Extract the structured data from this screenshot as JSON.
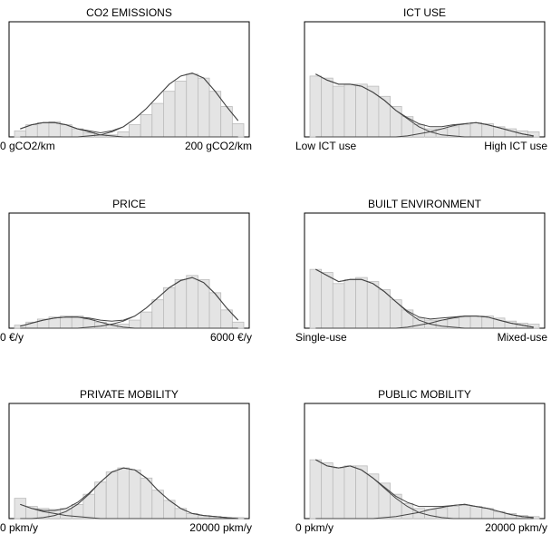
{
  "chart_data": [
    {
      "type": "histogram",
      "title": "CO2 EMISSIONS",
      "x_start_label": "0 gCO2/km",
      "x_end_label": "200 gCO2/km",
      "xlim": [
        0,
        200
      ],
      "bins": [
        0,
        10,
        20,
        30,
        40,
        50,
        60,
        70,
        80,
        90,
        100,
        110,
        120,
        130,
        140,
        150,
        160,
        170,
        180,
        190,
        200
      ],
      "ylim": [
        0,
        110
      ],
      "values": [
        6,
        12,
        14,
        15,
        12,
        8,
        4,
        2,
        2,
        5,
        12,
        22,
        33,
        45,
        55,
        62,
        58,
        45,
        30,
        13
      ],
      "density": [
        [
          8,
          12,
          14,
          14,
          12,
          8,
          5,
          2,
          1,
          0,
          0,
          0,
          0,
          0,
          0,
          0,
          0,
          0,
          0,
          0
        ],
        [
          0,
          0,
          0,
          0,
          0,
          0,
          1,
          2,
          5,
          10,
          18,
          28,
          40,
          52,
          60,
          63,
          58,
          45,
          30,
          16
        ],
        [
          8,
          12,
          14,
          14,
          12,
          8,
          6,
          4,
          6,
          10,
          18,
          28,
          40,
          52,
          60,
          63,
          58,
          45,
          30,
          16
        ]
      ]
    },
    {
      "type": "histogram",
      "title": "ICT USE",
      "x_start_label": "Low ICT use",
      "x_end_label": "High ICT use",
      "xlim": [
        0,
        20
      ],
      "bins": [
        0,
        1,
        2,
        3,
        4,
        5,
        6,
        7,
        8,
        9,
        10,
        11,
        12,
        13,
        14,
        15,
        16,
        17,
        18,
        19,
        20
      ],
      "ylim": [
        0,
        110
      ],
      "values": [
        60,
        58,
        50,
        52,
        52,
        50,
        40,
        30,
        20,
        12,
        8,
        8,
        10,
        12,
        14,
        13,
        10,
        8,
        6,
        5
      ],
      "density": [
        [
          62,
          56,
          52,
          52,
          50,
          44,
          36,
          26,
          18,
          10,
          5,
          2,
          1,
          0,
          0,
          0,
          0,
          0,
          0,
          0
        ],
        [
          0,
          0,
          0,
          0,
          0,
          0,
          0,
          0,
          1,
          3,
          5,
          8,
          11,
          13,
          14,
          12,
          9,
          6,
          3,
          1
        ],
        [
          62,
          56,
          52,
          52,
          50,
          44,
          36,
          26,
          19,
          13,
          10,
          10,
          12,
          13,
          14,
          12,
          9,
          6,
          3,
          1
        ]
      ]
    },
    {
      "type": "histogram",
      "title": "PRICE",
      "x_start_label": "0 €/y",
      "x_end_label": "6000 €/y",
      "xlim": [
        0,
        6000
      ],
      "bins": [
        0,
        300,
        600,
        900,
        1200,
        1500,
        1800,
        2100,
        2400,
        2700,
        3000,
        3300,
        3600,
        3900,
        4200,
        4500,
        4800,
        5100,
        5400,
        5700,
        6000
      ],
      "ylim": [
        0,
        110
      ],
      "values": [
        3,
        6,
        9,
        11,
        12,
        12,
        9,
        6,
        4,
        4,
        8,
        16,
        28,
        40,
        48,
        52,
        48,
        35,
        18,
        6
      ],
      "density": [
        [
          2,
          5,
          8,
          10,
          11,
          11,
          9,
          6,
          3,
          1,
          0,
          0,
          0,
          0,
          0,
          0,
          0,
          0,
          0,
          0
        ],
        [
          0,
          0,
          0,
          0,
          0,
          0,
          1,
          2,
          4,
          7,
          12,
          20,
          30,
          40,
          47,
          50,
          45,
          34,
          20,
          8
        ],
        [
          2,
          5,
          8,
          10,
          11,
          11,
          10,
          8,
          7,
          8,
          12,
          20,
          30,
          40,
          47,
          50,
          45,
          34,
          20,
          8
        ]
      ]
    },
    {
      "type": "histogram",
      "title": "BUILT ENVIRONMENT",
      "x_start_label": "Single-use",
      "x_end_label": "Mixed-use",
      "xlim": [
        0,
        20
      ],
      "bins": [
        0,
        1,
        2,
        3,
        4,
        5,
        6,
        7,
        8,
        9,
        10,
        11,
        12,
        13,
        14,
        15,
        16,
        17,
        18,
        19,
        20
      ],
      "ylim": [
        0,
        110
      ],
      "values": [
        58,
        55,
        44,
        48,
        50,
        46,
        38,
        28,
        18,
        10,
        8,
        8,
        10,
        11,
        12,
        12,
        10,
        7,
        5,
        4
      ],
      "density": [
        [
          58,
          52,
          46,
          48,
          48,
          44,
          36,
          26,
          16,
          8,
          4,
          2,
          1,
          0,
          0,
          0,
          0,
          0,
          0,
          0
        ],
        [
          0,
          0,
          0,
          0,
          0,
          0,
          0,
          0,
          1,
          3,
          5,
          8,
          10,
          12,
          12,
          11,
          8,
          5,
          3,
          1
        ],
        [
          58,
          52,
          46,
          48,
          48,
          44,
          36,
          26,
          17,
          11,
          9,
          10,
          11,
          12,
          12,
          11,
          8,
          5,
          3,
          1
        ]
      ]
    },
    {
      "type": "histogram",
      "title": "PRIVATE MOBILITY",
      "x_start_label": "0 pkm/y",
      "x_end_label": "20000 pkm/y",
      "xlim": [
        0,
        20000
      ],
      "bins": [
        0,
        1000,
        2000,
        3000,
        4000,
        5000,
        6000,
        7000,
        8000,
        9000,
        10000,
        11000,
        12000,
        13000,
        14000,
        15000,
        16000,
        17000,
        18000,
        19000,
        20000
      ],
      "ylim": [
        0,
        110
      ],
      "values": [
        20,
        12,
        10,
        9,
        10,
        14,
        24,
        36,
        46,
        50,
        48,
        40,
        28,
        18,
        10,
        5,
        3,
        2,
        1,
        1
      ],
      "density": [
        [
          14,
          10,
          7,
          5,
          3,
          2,
          1,
          0,
          0,
          0,
          0,
          0,
          0,
          0,
          0,
          0,
          0,
          0,
          0,
          0
        ],
        [
          0,
          0,
          1,
          3,
          7,
          14,
          24,
          36,
          46,
          50,
          48,
          40,
          28,
          18,
          10,
          5,
          3,
          2,
          1,
          0
        ],
        [
          14,
          10,
          8,
          8,
          10,
          16,
          25,
          36,
          46,
          50,
          48,
          40,
          28,
          18,
          10,
          5,
          3,
          2,
          1,
          0
        ]
      ]
    },
    {
      "type": "histogram",
      "title": "PUBLIC MOBILITY",
      "x_start_label": "0 pkm/y",
      "x_end_label": "20000 pkm/y",
      "xlim": [
        0,
        20000
      ],
      "bins": [
        0,
        1000,
        2000,
        3000,
        4000,
        5000,
        6000,
        7000,
        8000,
        9000,
        10000,
        11000,
        12000,
        13000,
        14000,
        15000,
        16000,
        17000,
        18000,
        19000,
        20000
      ],
      "ylim": [
        0,
        110
      ],
      "values": [
        58,
        55,
        50,
        52,
        52,
        44,
        35,
        24,
        15,
        10,
        9,
        10,
        12,
        13,
        12,
        10,
        7,
        5,
        3,
        2
      ],
      "density": [
        [
          58,
          52,
          50,
          52,
          48,
          40,
          30,
          20,
          12,
          6,
          3,
          1,
          0,
          0,
          0,
          0,
          0,
          0,
          0,
          0
        ],
        [
          0,
          0,
          0,
          0,
          0,
          0,
          1,
          2,
          4,
          6,
          9,
          11,
          13,
          14,
          12,
          10,
          7,
          4,
          2,
          1
        ],
        [
          58,
          52,
          50,
          52,
          48,
          40,
          31,
          22,
          16,
          12,
          12,
          12,
          13,
          14,
          12,
          10,
          7,
          4,
          2,
          1
        ]
      ]
    }
  ]
}
